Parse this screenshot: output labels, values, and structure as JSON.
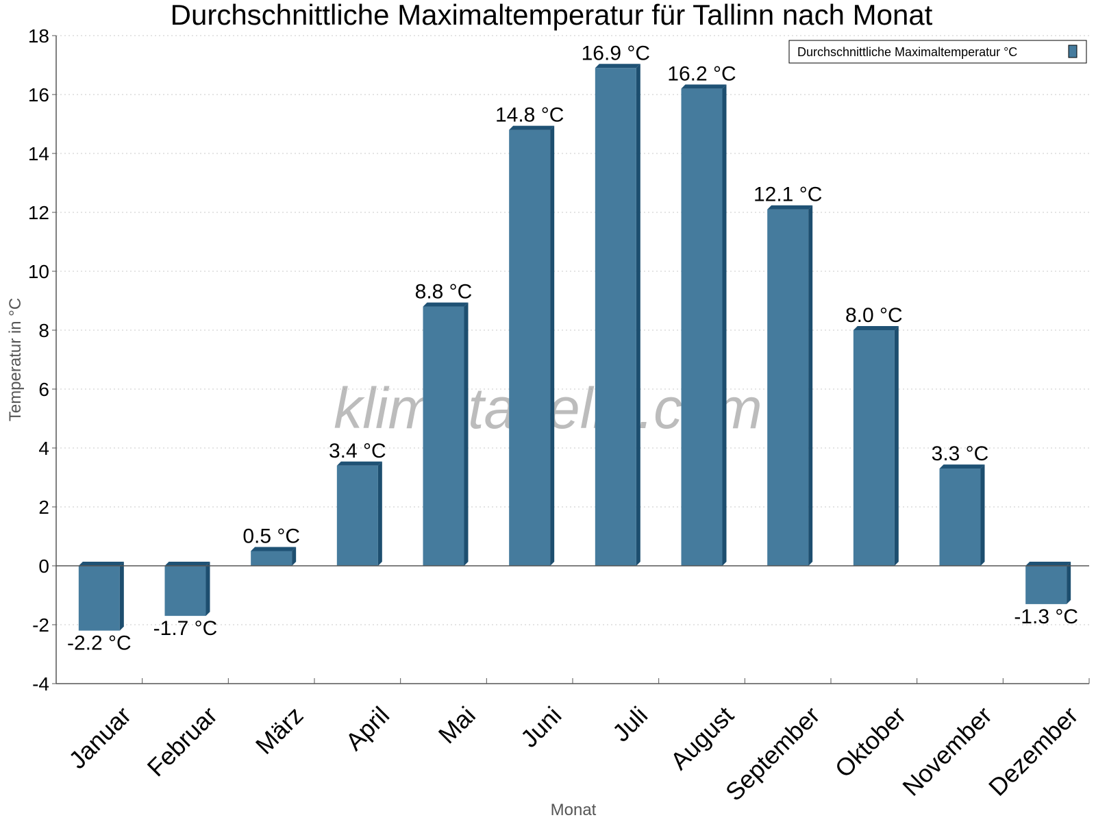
{
  "watermark": "klimatabelle.com",
  "colors": {
    "bar_front": "#457b9d",
    "bar_side": "#1d4e6f",
    "bar_top": "#1f5275",
    "grid": "#c8c8c8",
    "axis": "#555555"
  },
  "chart_data": {
    "type": "bar",
    "title": "Durchschnittliche Maximaltemperatur für Tallinn nach Monat",
    "xlabel": "Monat",
    "ylabel": "Temperatur in °C",
    "ylim": [
      -4,
      18
    ],
    "yticks": [
      "-4",
      "-2",
      "0",
      "2",
      "4",
      "6",
      "8",
      "10",
      "12",
      "14",
      "16",
      "18"
    ],
    "grid": true,
    "legend_position": "top-right",
    "categories": [
      "Januar",
      "Februar",
      "März",
      "April",
      "Mai",
      "Juni",
      "Juli",
      "August",
      "September",
      "Oktober",
      "November",
      "Dezember"
    ],
    "series": [
      {
        "name": "Durchschnittliche Maximaltemperatur °C",
        "values": [
          -2.2,
          -1.7,
          0.5,
          3.4,
          8.8,
          14.8,
          16.9,
          16.2,
          12.1,
          8.0,
          3.3,
          -1.3
        ],
        "labels": [
          "-2.2 °C",
          "-1.7 °C",
          "0.5 °C",
          "3.4 °C",
          "8.8 °C",
          "14.8 °C",
          "16.9 °C",
          "16.2 °C",
          "12.1 °C",
          "8.0 °C",
          "3.3 °C",
          "-1.3 °C"
        ]
      }
    ]
  }
}
